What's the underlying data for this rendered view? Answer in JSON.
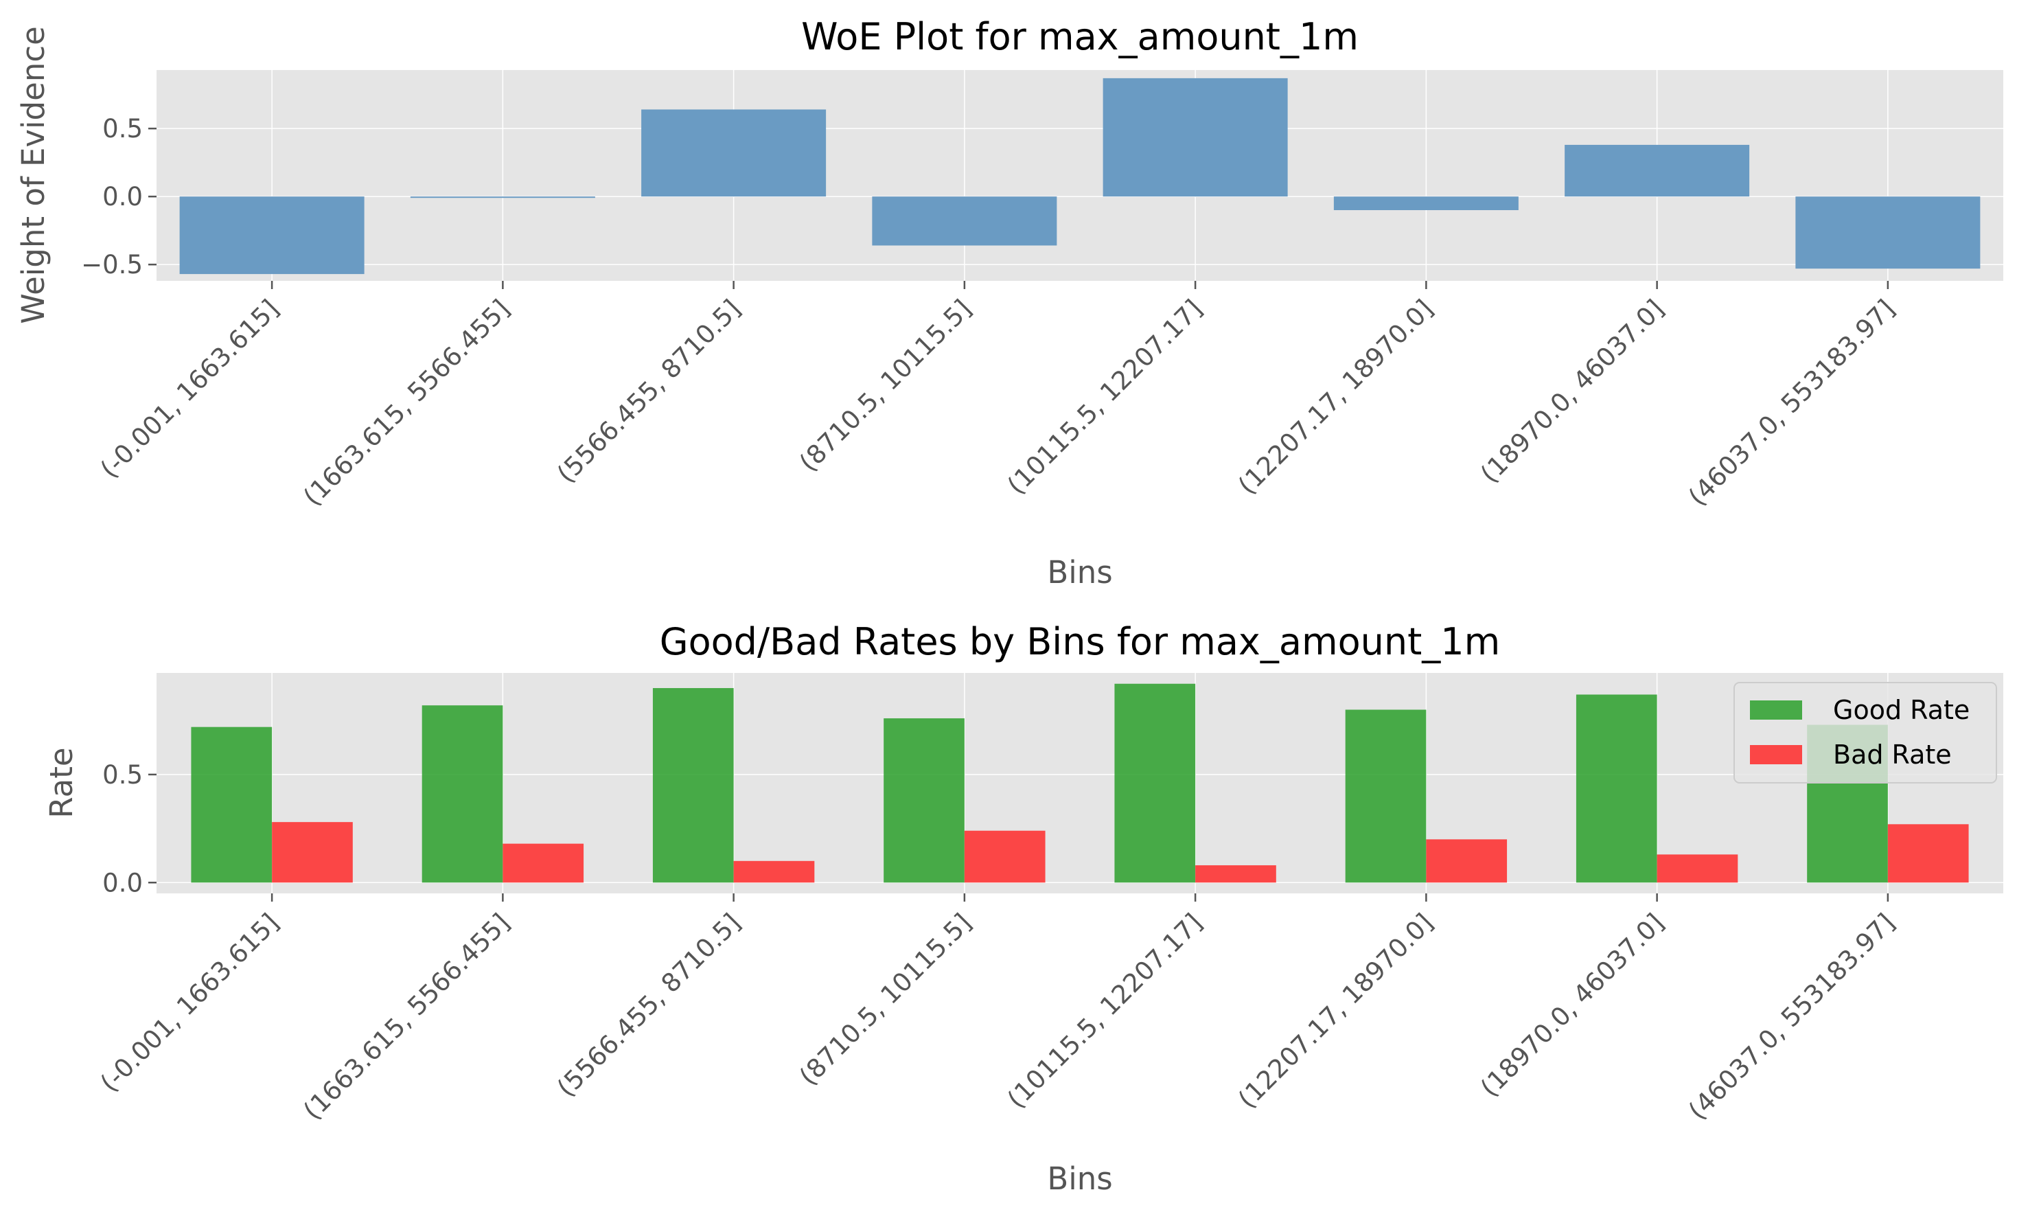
{
  "chart_data": [
    {
      "type": "bar",
      "title": "WoE Plot for max_amount_1m",
      "xlabel": "Bins",
      "ylabel": "Weight of Evidence",
      "categories": [
        "(-0.001, 1663.615]",
        "(1663.615, 5566.455]",
        "(5566.455, 8710.5]",
        "(8710.5, 10115.5]",
        "(10115.5, 12207.17]",
        "(12207.17, 18970.0]",
        "(18970.0, 46037.0]",
        "(46037.0, 553183.97]"
      ],
      "values": [
        -0.57,
        -0.01,
        0.64,
        -0.36,
        0.87,
        -0.1,
        0.38,
        -0.53
      ],
      "ylim": [
        -0.62,
        0.93
      ],
      "yticks": [
        -0.5,
        0.0,
        0.5
      ],
      "ytick_labels": [
        "−0.5",
        "0.0",
        "0.5"
      ],
      "grid": true,
      "colors": {
        "bar": "#6a9bc3"
      }
    },
    {
      "type": "bar",
      "title": "Good/Bad Rates by Bins for max_amount_1m",
      "xlabel": "Bins",
      "ylabel": "Rate",
      "categories": [
        "(-0.001, 1663.615]",
        "(1663.615, 5566.455]",
        "(5566.455, 8710.5]",
        "(8710.5, 10115.5]",
        "(10115.5, 12207.17]",
        "(12207.17, 18970.0]",
        "(18970.0, 46037.0]",
        "(46037.0, 553183.97]"
      ],
      "series": [
        {
          "name": "Good Rate",
          "values": [
            0.72,
            0.82,
            0.9,
            0.76,
            0.92,
            0.8,
            0.87,
            0.73
          ],
          "color": "#2ca02c"
        },
        {
          "name": "Bad Rate",
          "values": [
            0.28,
            0.18,
            0.1,
            0.24,
            0.08,
            0.2,
            0.13,
            0.27
          ],
          "color": "#ff2a2a"
        }
      ],
      "ylim": [
        -0.05,
        0.97
      ],
      "yticks": [
        0.0,
        0.5
      ],
      "ytick_labels": [
        "0.0",
        "0.5"
      ],
      "grid": true,
      "legend": "top-right"
    }
  ]
}
